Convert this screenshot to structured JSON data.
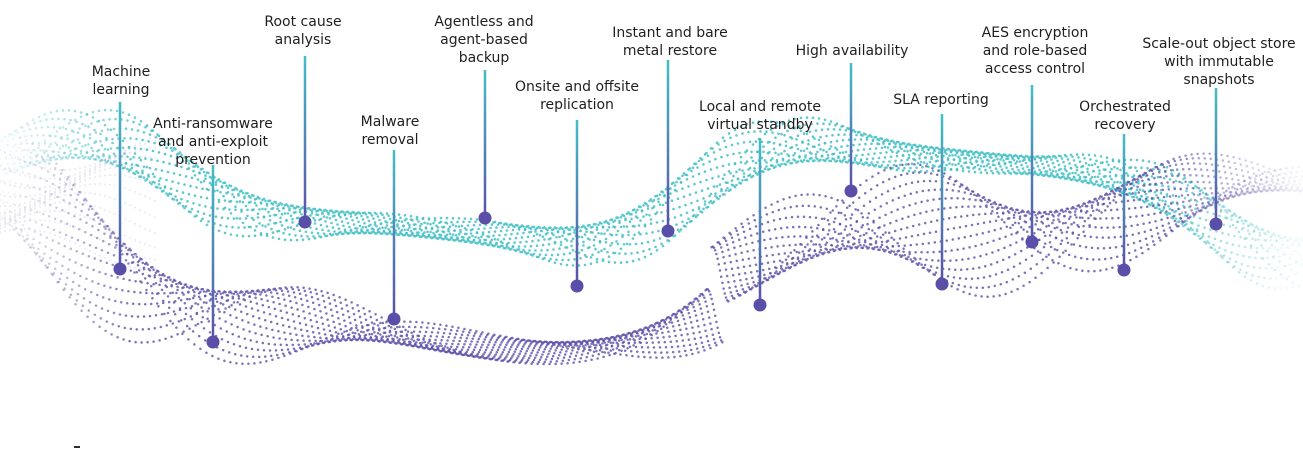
{
  "features": [
    {
      "id": "machine-learning",
      "text": "Machine\nlearning",
      "lineColor": "#43bfc4"
    },
    {
      "id": "anti-ransomware",
      "text": "Anti-ransomware\nand anti-exploit\nprevention",
      "lineColor": "#43bfc4"
    },
    {
      "id": "root-cause-analysis",
      "text": "Root cause\nanalysis",
      "lineColor": "#43bfc4"
    },
    {
      "id": "malware-removal",
      "text": "Malware\nremoval",
      "lineColor": "#43bfc4"
    },
    {
      "id": "agentless-backup",
      "text": "Agentless and\nagent-based\nbackup",
      "lineColor": "#43bfc4"
    },
    {
      "id": "onsite-offsite-replication",
      "text": "Onsite and offsite\nreplication",
      "lineColor": "#43bfc4"
    },
    {
      "id": "instant-bare-metal-restore",
      "text": "Instant and bare\nmetal restore",
      "lineColor": "#43bfc4"
    },
    {
      "id": "virtual-standby",
      "text": "Local and remote\nvirtual standby",
      "lineColor": "#43bfc4"
    },
    {
      "id": "high-availability",
      "text": "High availability",
      "lineColor": "#43bfc4"
    },
    {
      "id": "sla-reporting",
      "text": "SLA reporting",
      "lineColor": "#43bfc4"
    },
    {
      "id": "aes-encryption",
      "text": "AES encryption\nand role-based\naccess control",
      "lineColor": "#43bfc4"
    },
    {
      "id": "orchestrated-recovery",
      "text": "Orchestrated\nrecovery",
      "lineColor": "#43bfc4"
    },
    {
      "id": "object-store",
      "text": "Scale-out object store\nwith immutable\nsnapshots",
      "lineColor": "#43bfc4"
    }
  ],
  "colors": {
    "teal": "#43bfc4",
    "purple": "#5a4fa8",
    "dot": "#5a4fa8",
    "lightGrey": "#e6e6ef"
  }
}
